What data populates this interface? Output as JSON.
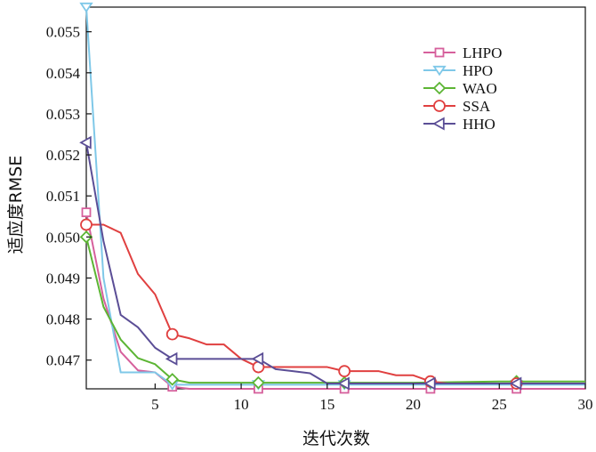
{
  "chart_data": {
    "type": "line",
    "title": "",
    "xlabel": "迭代次数",
    "ylabel": "适应度RMSE",
    "xlim": [
      1,
      30
    ],
    "ylim": [
      0.0463,
      0.0556
    ],
    "xticks": [
      "5",
      "10",
      "15",
      "20",
      "25",
      "30"
    ],
    "yticks": [
      "0.047",
      "0.048",
      "0.049",
      "0.050",
      "0.051",
      "0.052",
      "0.053",
      "0.054",
      "0.055"
    ],
    "grid": false,
    "legend_position": "top-right",
    "series": [
      {
        "name": "LHPO",
        "color": "#d6609c",
        "marker": "square",
        "marker_x": [
          1,
          6,
          11,
          16,
          21,
          26
        ],
        "x": [
          1,
          2,
          3,
          4,
          5,
          6,
          7,
          8,
          10,
          12,
          15,
          20,
          25,
          30
        ],
        "y": [
          0.0506,
          0.0485,
          0.0472,
          0.04675,
          0.0467,
          0.04635,
          0.0463,
          0.0463,
          0.0463,
          0.0463,
          0.0463,
          0.0463,
          0.0463,
          0.0463
        ]
      },
      {
        "name": "HPO",
        "color": "#7fc8e8",
        "marker": "triangle-down",
        "marker_x": [
          1,
          6,
          11,
          16,
          21,
          26
        ],
        "x": [
          1,
          2,
          3,
          4,
          5,
          6,
          7,
          8,
          10,
          12,
          15,
          20,
          25,
          30
        ],
        "y": [
          0.0556,
          0.049,
          0.0467,
          0.0467,
          0.0467,
          0.0464,
          0.0464,
          0.0464,
          0.0464,
          0.0464,
          0.0464,
          0.0464,
          0.0464,
          0.0464
        ]
      },
      {
        "name": "WAO",
        "color": "#5cb534",
        "marker": "diamond",
        "marker_x": [
          1,
          6,
          11,
          16,
          21,
          26
        ],
        "x": [
          1,
          2,
          3,
          4,
          5,
          6,
          7,
          8,
          10,
          12,
          15,
          20,
          25,
          30
        ],
        "y": [
          0.05,
          0.0483,
          0.0475,
          0.04705,
          0.0469,
          0.04653,
          0.04645,
          0.04645,
          0.04645,
          0.04645,
          0.04645,
          0.04645,
          0.04648,
          0.04648
        ]
      },
      {
        "name": "SSA",
        "color": "#e04040",
        "marker": "circle",
        "marker_x": [
          1,
          6,
          11,
          16,
          21,
          26
        ],
        "x": [
          1,
          2,
          3,
          4,
          5,
          6,
          7,
          8,
          9,
          10,
          11,
          12,
          13,
          14,
          15,
          16,
          17,
          18,
          19,
          20,
          21,
          22,
          23,
          24,
          25,
          26,
          27,
          28,
          29,
          30
        ],
        "y": [
          0.0503,
          0.0503,
          0.0501,
          0.0491,
          0.0486,
          0.04763,
          0.04753,
          0.04738,
          0.04738,
          0.04703,
          0.04683,
          0.04683,
          0.04683,
          0.04683,
          0.04683,
          0.04673,
          0.04673,
          0.04673,
          0.04663,
          0.04663,
          0.04648,
          0.04643,
          0.04643,
          0.04643,
          0.04643,
          0.04643,
          0.04643,
          0.04643,
          0.04643,
          0.04643
        ]
      },
      {
        "name": "HHO",
        "color": "#5b4e96",
        "marker": "triangle-left",
        "marker_x": [
          1,
          6,
          11,
          16,
          21,
          26
        ],
        "x": [
          1,
          2,
          3,
          4,
          5,
          6,
          7,
          8,
          9,
          10,
          11,
          12,
          13,
          14,
          15,
          16,
          17,
          18,
          19,
          20,
          21,
          22,
          23,
          24,
          25,
          26,
          27,
          28,
          29,
          30
        ],
        "y": [
          0.0523,
          0.0499,
          0.0481,
          0.0478,
          0.0473,
          0.04703,
          0.04703,
          0.04703,
          0.04703,
          0.04703,
          0.04703,
          0.04678,
          0.04673,
          0.04668,
          0.04643,
          0.04643,
          0.04643,
          0.04643,
          0.04643,
          0.04643,
          0.04643,
          0.04643,
          0.04643,
          0.04643,
          0.04643,
          0.04643,
          0.04643,
          0.04643,
          0.04643,
          0.04643
        ]
      }
    ]
  }
}
